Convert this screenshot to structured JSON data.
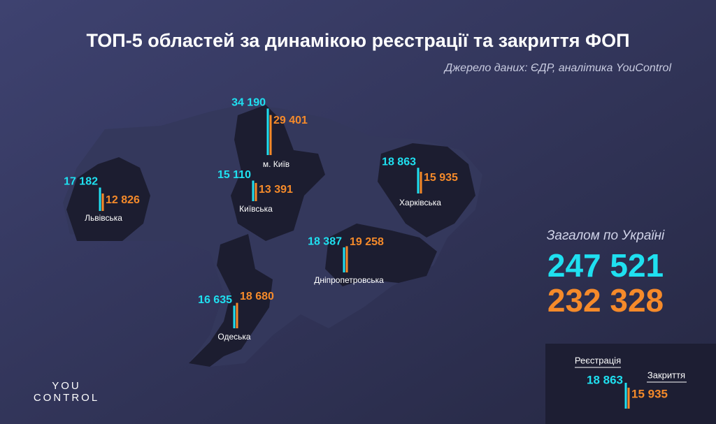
{
  "title": "ТОП-5 областей за динамікою реєстрації та закриття ФОП",
  "source": "Джерело даних: ЄДР, аналітика YouControl",
  "regions": [
    {
      "name": "м. Київ",
      "registrations": 34190,
      "registrations_label": "34 190",
      "closures": 29401,
      "closures_label": "29 401"
    },
    {
      "name": "Київська",
      "registrations": 15110,
      "registrations_label": "15 110",
      "closures": 13391,
      "closures_label": "13 391"
    },
    {
      "name": "Львівська",
      "registrations": 17182,
      "registrations_label": "17 182",
      "closures": 12826,
      "closures_label": "12 826"
    },
    {
      "name": "Харківська",
      "registrations": 18863,
      "registrations_label": "18 863",
      "closures": 15935,
      "closures_label": "15 935"
    },
    {
      "name": "Дніпропетровська",
      "registrations": 18387,
      "registrations_label": "18 387",
      "closures": 19258,
      "closures_label": "19 258"
    },
    {
      "name": "Одеська",
      "registrations": 16635,
      "registrations_label": "16 635",
      "closures": 18680,
      "closures_label": "18 680"
    }
  ],
  "total": {
    "label": "Загалом по Україні",
    "registrations_label": "247 521",
    "closures_label": "232 328"
  },
  "legend": {
    "registrations": "Реєстрація",
    "closures": "Закриття",
    "example_registrations": "18 863",
    "example_closures": "15 935"
  },
  "logo": {
    "top": "YOU",
    "bottom": "CONTROL"
  }
}
